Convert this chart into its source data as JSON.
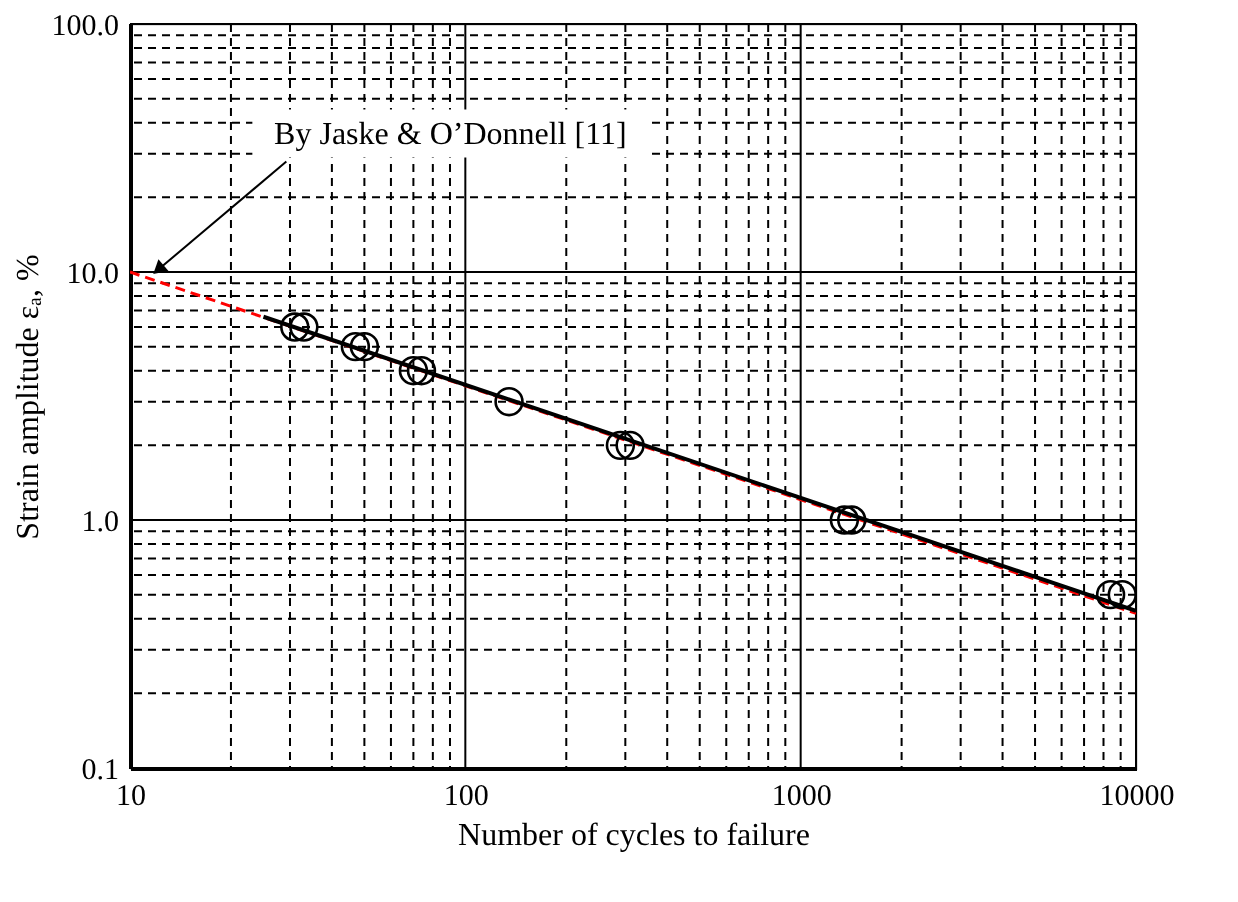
{
  "chart_data": {
    "type": "scatter",
    "xlabel": "Number of cycles to failure",
    "ylabel": "Strain amplitude εₐ, %",
    "log": "xy",
    "grid": true,
    "xlim": [
      10,
      10000
    ],
    "ylim": [
      0.1,
      100
    ],
    "xticks": [
      10,
      {
        "value": 20,
        "label": null
      },
      {
        "value": 30,
        "label": null
      },
      {
        "value": 40,
        "label": null
      },
      {
        "value": 50,
        "label": null
      },
      {
        "value": 60,
        "label": null
      },
      {
        "value": 70,
        "label": null
      },
      {
        "value": 80,
        "label": null
      },
      {
        "value": 90,
        "label": null
      },
      100,
      {
        "value": 200,
        "label": null
      },
      {
        "value": 300,
        "label": null
      },
      {
        "value": 400,
        "label": null
      },
      {
        "value": 500,
        "label": null
      },
      {
        "value": 600,
        "label": null
      },
      {
        "value": 700,
        "label": null
      },
      {
        "value": 800,
        "label": null
      },
      {
        "value": 900,
        "label": null
      },
      1000,
      {
        "value": 2000,
        "label": null
      },
      {
        "value": 3000,
        "label": null
      },
      {
        "value": 4000,
        "label": null
      },
      {
        "value": 5000,
        "label": null
      },
      {
        "value": 6000,
        "label": null
      },
      {
        "value": 7000,
        "label": null
      },
      {
        "value": 8000,
        "label": null
      },
      {
        "value": 9000,
        "label": null
      },
      10000
    ],
    "yticks": [
      {
        "value": 0.1,
        "label": "0.1"
      },
      {
        "value": 0.2,
        "label": null
      },
      {
        "value": 0.3,
        "label": null
      },
      {
        "value": 0.4,
        "label": null
      },
      {
        "value": 0.5,
        "label": null
      },
      {
        "value": 0.6,
        "label": null
      },
      {
        "value": 0.7,
        "label": null
      },
      {
        "value": 0.8,
        "label": null
      },
      {
        "value": 0.9,
        "label": null
      },
      {
        "value": 1,
        "label": "1.0"
      },
      {
        "value": 2,
        "label": null
      },
      {
        "value": 3,
        "label": null
      },
      {
        "value": 4,
        "label": null
      },
      {
        "value": 5,
        "label": null
      },
      {
        "value": 6,
        "label": null
      },
      {
        "value": 7,
        "label": null
      },
      {
        "value": 8,
        "label": null
      },
      {
        "value": 9,
        "label": null
      },
      {
        "value": 10,
        "label": "10.0"
      },
      {
        "value": 20,
        "label": null
      },
      {
        "value": 30,
        "label": null
      },
      {
        "value": 40,
        "label": null
      },
      {
        "value": 50,
        "label": null
      },
      {
        "value": 60,
        "label": null
      },
      {
        "value": 70,
        "label": null
      },
      {
        "value": 80,
        "label": null
      },
      {
        "value": 90,
        "label": null
      },
      {
        "value": 100,
        "label": "100.0"
      }
    ],
    "series": [
      {
        "type": "line",
        "color": "#ff0000",
        "line_style": "dashed",
        "marker": "none",
        "x": [
          10,
          10000
        ],
        "values": [
          10,
          0.42
        ]
      },
      {
        "type": "line",
        "color": "#000000",
        "line_style": "solid",
        "marker": "none",
        "x": [
          25,
          10000
        ],
        "values": [
          6.6,
          0.43
        ]
      },
      {
        "color": "#000000",
        "marker": "circle",
        "x": [
          31,
          33,
          47,
          50,
          70,
          74,
          135,
          290,
          310,
          1350,
          1420,
          8400,
          9100
        ],
        "values": [
          6,
          6,
          5,
          5,
          4,
          4,
          3,
          2,
          2,
          1,
          1,
          0.5,
          0.5
        ]
      }
    ],
    "annotations": [
      {
        "text": "By Jaske & O’Donnell [11]",
        "x": 11.5,
        "y": 9.5
      }
    ]
  }
}
